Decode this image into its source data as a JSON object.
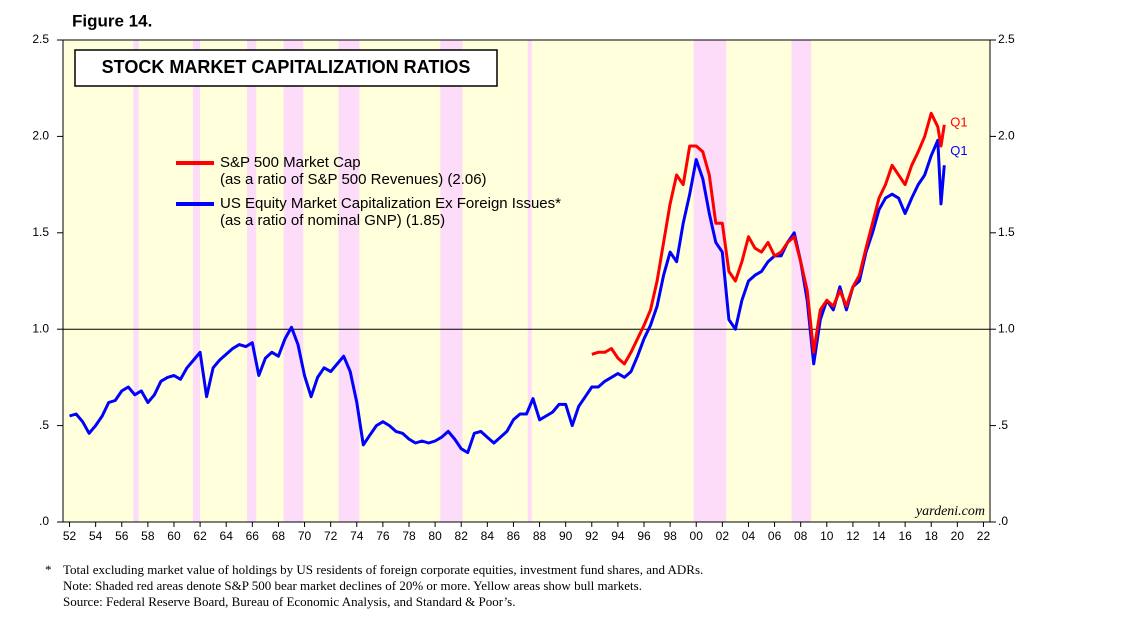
{
  "figure_label": "Figure 14.",
  "chart_data": {
    "type": "line",
    "title": "STOCK MARKET CAPITALIZATION RATIOS",
    "x": [
      1952,
      1952.5,
      1953,
      1953.5,
      1954,
      1954.5,
      1955,
      1955.5,
      1956,
      1956.5,
      1957,
      1957.5,
      1958,
      1958.5,
      1959,
      1959.5,
      1960,
      1960.5,
      1961,
      1961.5,
      1962,
      1962.5,
      1963,
      1963.5,
      1964,
      1964.5,
      1965,
      1965.5,
      1966,
      1966.5,
      1967,
      1967.5,
      1968,
      1968.5,
      1969,
      1969.5,
      1970,
      1970.5,
      1971,
      1971.5,
      1972,
      1972.5,
      1973,
      1973.5,
      1974,
      1974.5,
      1975,
      1975.5,
      1976,
      1976.5,
      1977,
      1977.5,
      1978,
      1978.5,
      1979,
      1979.5,
      1980,
      1980.5,
      1981,
      1981.5,
      1982,
      1982.5,
      1983,
      1983.5,
      1984,
      1984.5,
      1985,
      1985.5,
      1986,
      1986.5,
      1987,
      1987.5,
      1988,
      1988.5,
      1989,
      1989.5,
      1990,
      1990.5,
      1991,
      1991.5,
      1992,
      1992.5,
      1993,
      1993.5,
      1994,
      1994.5,
      1995,
      1995.5,
      1996,
      1996.5,
      1997,
      1997.5,
      1998,
      1998.5,
      1999,
      1999.5,
      2000,
      2000.5,
      2001,
      2001.5,
      2002,
      2002.5,
      2003,
      2003.5,
      2004,
      2004.5,
      2005,
      2005.5,
      2006,
      2006.5,
      2007,
      2007.5,
      2008,
      2008.5,
      2009,
      2009.5,
      2010,
      2010.5,
      2011,
      2011.5,
      2012,
      2012.5,
      2013,
      2013.5,
      2014,
      2014.5,
      2015,
      2015.5,
      2016,
      2016.5,
      2017,
      2017.5,
      2018,
      2018.5,
      2018.75,
      2019
    ],
    "series": [
      {
        "name": "S&P 500 Market Cap",
        "note": "(as a ratio of S&P 500 Revenues) (2.06)",
        "end_label": "Q1",
        "color": "#ff0000",
        "values": [
          null,
          null,
          null,
          null,
          null,
          null,
          null,
          null,
          null,
          null,
          null,
          null,
          null,
          null,
          null,
          null,
          null,
          null,
          null,
          null,
          null,
          null,
          null,
          null,
          null,
          null,
          null,
          null,
          null,
          null,
          null,
          null,
          null,
          null,
          null,
          null,
          null,
          null,
          null,
          null,
          null,
          null,
          null,
          null,
          null,
          null,
          null,
          null,
          null,
          null,
          null,
          null,
          null,
          null,
          null,
          null,
          null,
          null,
          null,
          null,
          null,
          null,
          null,
          null,
          null,
          null,
          null,
          null,
          null,
          null,
          null,
          null,
          null,
          null,
          null,
          null,
          null,
          null,
          null,
          null,
          0.87,
          0.88,
          0.88,
          0.9,
          0.85,
          0.82,
          0.88,
          0.95,
          1.02,
          1.1,
          1.25,
          1.45,
          1.65,
          1.8,
          1.75,
          1.95,
          1.95,
          1.92,
          1.8,
          1.55,
          1.55,
          1.3,
          1.25,
          1.35,
          1.48,
          1.42,
          1.4,
          1.45,
          1.38,
          1.4,
          1.45,
          1.48,
          1.35,
          1.2,
          0.88,
          1.1,
          1.15,
          1.12,
          1.2,
          1.12,
          1.22,
          1.28,
          1.42,
          1.55,
          1.68,
          1.75,
          1.85,
          1.8,
          1.75,
          1.85,
          1.92,
          2.0,
          2.12,
          2.05,
          1.95,
          2.06
        ]
      },
      {
        "name": "US Equity Market Capitalization Ex Foreign Issues*",
        "note": "(as a ratio of nominal GNP) (1.85)",
        "end_label": "Q1",
        "color": "#0000ff",
        "values": [
          0.55,
          0.56,
          0.52,
          0.46,
          0.5,
          0.55,
          0.62,
          0.63,
          0.68,
          0.7,
          0.66,
          0.68,
          0.62,
          0.66,
          0.73,
          0.75,
          0.76,
          0.74,
          0.8,
          0.84,
          0.88,
          0.65,
          0.8,
          0.84,
          0.87,
          0.9,
          0.92,
          0.91,
          0.93,
          0.76,
          0.85,
          0.88,
          0.86,
          0.95,
          1.01,
          0.92,
          0.76,
          0.65,
          0.75,
          0.8,
          0.78,
          0.82,
          0.86,
          0.78,
          0.62,
          0.4,
          0.45,
          0.5,
          0.52,
          0.5,
          0.47,
          0.46,
          0.43,
          0.41,
          0.42,
          0.41,
          0.42,
          0.44,
          0.47,
          0.43,
          0.38,
          0.36,
          0.46,
          0.47,
          0.44,
          0.41,
          0.44,
          0.47,
          0.53,
          0.56,
          0.56,
          0.64,
          0.53,
          0.55,
          0.57,
          0.61,
          0.61,
          0.5,
          0.6,
          0.65,
          0.7,
          0.7,
          0.73,
          0.75,
          0.77,
          0.75,
          0.78,
          0.86,
          0.95,
          1.02,
          1.12,
          1.28,
          1.4,
          1.35,
          1.55,
          1.7,
          1.88,
          1.78,
          1.6,
          1.45,
          1.4,
          1.05,
          1.0,
          1.15,
          1.25,
          1.28,
          1.3,
          1.35,
          1.38,
          1.38,
          1.45,
          1.5,
          1.35,
          1.15,
          0.82,
          1.05,
          1.15,
          1.1,
          1.22,
          1.1,
          1.22,
          1.25,
          1.4,
          1.5,
          1.62,
          1.68,
          1.7,
          1.68,
          1.6,
          1.68,
          1.75,
          1.8,
          1.9,
          1.98,
          1.65,
          1.85
        ]
      }
    ],
    "xlim": [
      1951.5,
      2022.5
    ],
    "xticks": [
      {
        "value": 1952,
        "label": "52"
      },
      {
        "value": 1954,
        "label": "54"
      },
      {
        "value": 1956,
        "label": "56"
      },
      {
        "value": 1958,
        "label": "58"
      },
      {
        "value": 1960,
        "label": "60"
      },
      {
        "value": 1962,
        "label": "62"
      },
      {
        "value": 1964,
        "label": "64"
      },
      {
        "value": 1966,
        "label": "66"
      },
      {
        "value": 1968,
        "label": "68"
      },
      {
        "value": 1970,
        "label": "70"
      },
      {
        "value": 1972,
        "label": "72"
      },
      {
        "value": 1974,
        "label": "74"
      },
      {
        "value": 1976,
        "label": "76"
      },
      {
        "value": 1978,
        "label": "78"
      },
      {
        "value": 1980,
        "label": "80"
      },
      {
        "value": 1982,
        "label": "82"
      },
      {
        "value": 1984,
        "label": "84"
      },
      {
        "value": 1986,
        "label": "86"
      },
      {
        "value": 1988,
        "label": "88"
      },
      {
        "value": 1990,
        "label": "90"
      },
      {
        "value": 1992,
        "label": "92"
      },
      {
        "value": 1994,
        "label": "94"
      },
      {
        "value": 1996,
        "label": "96"
      },
      {
        "value": 1998,
        "label": "98"
      },
      {
        "value": 2000,
        "label": "00"
      },
      {
        "value": 2002,
        "label": "02"
      },
      {
        "value": 2004,
        "label": "04"
      },
      {
        "value": 2006,
        "label": "06"
      },
      {
        "value": 2008,
        "label": "08"
      },
      {
        "value": 2010,
        "label": "10"
      },
      {
        "value": 2012,
        "label": "12"
      },
      {
        "value": 2014,
        "label": "14"
      },
      {
        "value": 2016,
        "label": "16"
      },
      {
        "value": 2018,
        "label": "18"
      },
      {
        "value": 2020,
        "label": "20"
      },
      {
        "value": 2022,
        "label": "22"
      }
    ],
    "ylim": [
      0,
      2.5
    ],
    "yticks": [
      {
        "value": 0,
        "label": ".0"
      },
      {
        "value": 0.5,
        "label": ".5"
      },
      {
        "value": 1,
        "label": "1.0"
      },
      {
        "value": 1.5,
        "label": "1.5"
      },
      {
        "value": 2,
        "label": "2.0"
      },
      {
        "value": 2.5,
        "label": "2.5"
      }
    ],
    "reference_line": 1.0,
    "shaded_regions": [
      [
        1956.9,
        1957.3
      ],
      [
        1961.45,
        1962.0
      ],
      [
        1965.6,
        1966.3
      ],
      [
        1968.4,
        1969.9
      ],
      [
        1972.6,
        1974.2
      ],
      [
        1980.4,
        1982.1
      ],
      [
        1987.1,
        1987.4
      ],
      [
        1999.8,
        2002.3
      ],
      [
        2007.3,
        2008.8
      ]
    ],
    "shade_color": "#fcdcf8",
    "background_color": "#ffffdc",
    "source_tag": "yardeni.com"
  },
  "footnotes": {
    "marker": "*",
    "lines": [
      "Total excluding market value of holdings by US residents of foreign corporate equities, investment fund shares, and ADRs.",
      "Note: Shaded red areas denote S&P 500 bear market declines of 20% or more. Yellow areas show bull markets.",
      "Source: Federal Reserve Board, Bureau of Economic Analysis, and Standard & Poor’s."
    ]
  }
}
